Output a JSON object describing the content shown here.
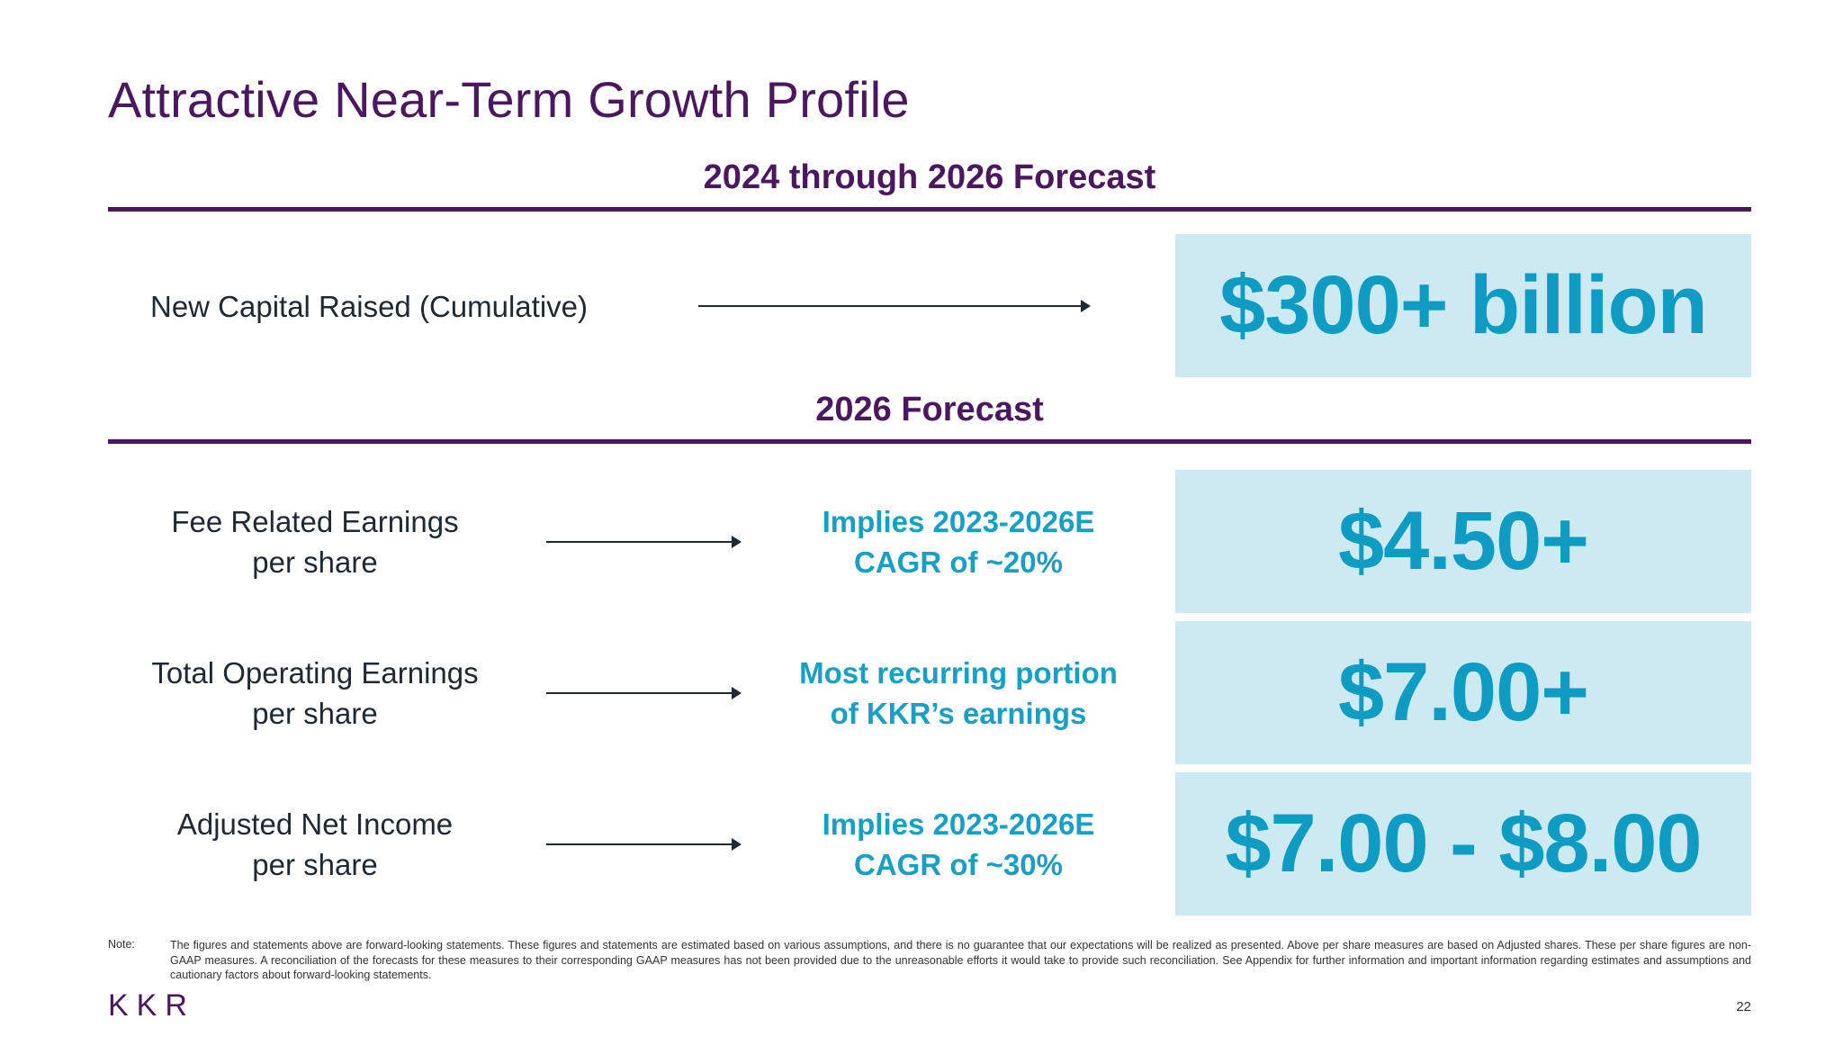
{
  "title": "Attractive Near-Term Growth Profile",
  "sections": [
    {
      "header": "2024 through 2026 Forecast",
      "rows": [
        {
          "label_lines": [
            "New Capital Raised (Cumulative)"
          ],
          "note_lines": [],
          "value": "$300+ billion"
        }
      ]
    },
    {
      "header": "2026 Forecast",
      "rows": [
        {
          "label_lines": [
            "Fee Related Earnings",
            "per share"
          ],
          "note_lines": [
            "Implies 2023-2026E",
            "CAGR of ~20%"
          ],
          "value": "$4.50+"
        },
        {
          "label_lines": [
            "Total Operating Earnings",
            "per share"
          ],
          "note_lines": [
            "Most recurring portion",
            "of KKR’s earnings"
          ],
          "value": "$7.00+"
        },
        {
          "label_lines": [
            "Adjusted Net Income",
            "per share"
          ],
          "note_lines": [
            "Implies 2023-2026E",
            "CAGR of ~30%"
          ],
          "value": "$7.00 - $8.00"
        }
      ]
    }
  ],
  "footnote": {
    "label": "Note:",
    "text": "The figures and statements above are forward-looking statements. These figures and statements are estimated based on various assumptions, and there is no guarantee that our expectations will be realized as presented. Above per share measures are based on Adjusted shares. These per share figures are non-GAAP measures. A reconciliation of the forecasts for these measures to their corresponding GAAP measures has not been provided due to the unreasonable efforts it would take to provide such reconciliation. See Appendix for further information and important information regarding estimates and assumptions and cautionary factors about forward-looking statements."
  },
  "logo_text": "KKR",
  "page_number": "22",
  "colors": {
    "brand_purple": "#4b1860",
    "accent_teal": "#0e9cc2",
    "box_fill": "#cdeaf2"
  }
}
